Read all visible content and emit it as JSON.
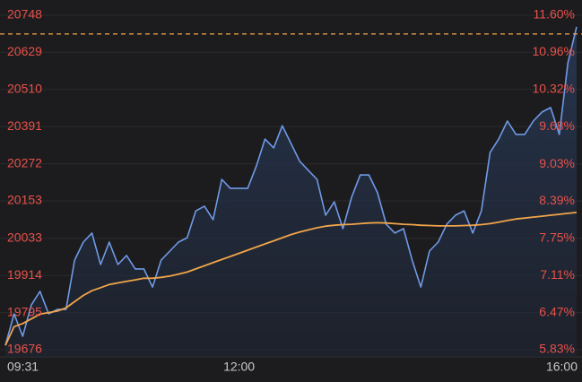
{
  "chart_data": {
    "type": "line",
    "categories": [
      "09:31",
      null,
      null,
      null,
      null,
      null,
      null,
      null,
      null,
      null,
      null,
      null,
      null,
      null,
      null,
      null,
      null,
      null,
      null,
      null,
      null,
      null,
      null,
      null,
      null,
      null,
      null,
      "12:00",
      null,
      null,
      null,
      null,
      null,
      null,
      null,
      null,
      null,
      null,
      null,
      null,
      null,
      null,
      null,
      null,
      null,
      null,
      null,
      null,
      null,
      null,
      null,
      null,
      null,
      null,
      null,
      null,
      null,
      null,
      null,
      null,
      null,
      null,
      null,
      null,
      null,
      null,
      "16:00"
    ],
    "series": [
      {
        "name": "price",
        "color": "#6f9ae6",
        "values": [
          19690,
          19791,
          19719,
          19820,
          19863,
          19791,
          19805,
          19805,
          19963,
          20021,
          20050,
          19949,
          20021,
          19949,
          19978,
          19935,
          19935,
          19877,
          19963,
          19992,
          20021,
          20035,
          20121,
          20136,
          20093,
          20222,
          20193,
          20193,
          20193,
          20265,
          20351,
          20323,
          20394,
          20337,
          20280,
          20251,
          20222,
          20107,
          20150,
          20064,
          20165,
          20236,
          20236,
          20179,
          20078,
          20050,
          20064,
          19963,
          19877,
          19992,
          20021,
          20078,
          20107,
          20121,
          20050,
          20121,
          20308,
          20351,
          20409,
          20366,
          20366,
          20409,
          20438,
          20452,
          20366,
          20596,
          20711
        ]
      },
      {
        "name": "average",
        "color": "#f0a54a",
        "values": [
          19690,
          19750,
          19760,
          19775,
          19790,
          19795,
          19800,
          19810,
          19830,
          19850,
          19865,
          19875,
          19885,
          19890,
          19895,
          19900,
          19905,
          19905,
          19908,
          19912,
          19918,
          19925,
          19935,
          19945,
          19955,
          19965,
          19975,
          19985,
          19995,
          20005,
          20015,
          20025,
          20035,
          20045,
          20053,
          20060,
          20067,
          20072,
          20075,
          20077,
          20078,
          20080,
          20082,
          20083,
          20082,
          20080,
          20078,
          20077,
          20075,
          20074,
          20073,
          20073,
          20073,
          20074,
          20075,
          20077,
          20080,
          20085,
          20090,
          20095,
          20098,
          20101,
          20104,
          20107,
          20110,
          20113,
          20116
        ]
      }
    ],
    "last_price_line": {
      "value": 20688,
      "color": "#f0a54a"
    },
    "ylim": [
      19676,
      20748
    ],
    "yticks": [
      19676,
      19795,
      19914,
      20033,
      20153,
      20272,
      20391,
      20510,
      20629,
      20748
    ],
    "y2lim": [
      5.83,
      11.6
    ],
    "y2ticks": [
      {
        "value": 5.83,
        "label": "5.83%"
      },
      {
        "value": 6.47,
        "label": "6.47%"
      },
      {
        "value": 7.11,
        "label": "7.11%"
      },
      {
        "value": 7.75,
        "label": "7.75%"
      },
      {
        "value": 8.39,
        "label": "8.39%"
      },
      {
        "value": 9.03,
        "label": "9.03%"
      },
      {
        "value": 9.68,
        "label": "9.68%"
      },
      {
        "value": 10.32,
        "label": "10.32%"
      },
      {
        "value": 10.96,
        "label": "10.96%"
      },
      {
        "value": 11.6,
        "label": "11.60%"
      }
    ],
    "grid": true,
    "tick_color": "#e8514a",
    "axis_label_color": "#c8c8c8"
  }
}
